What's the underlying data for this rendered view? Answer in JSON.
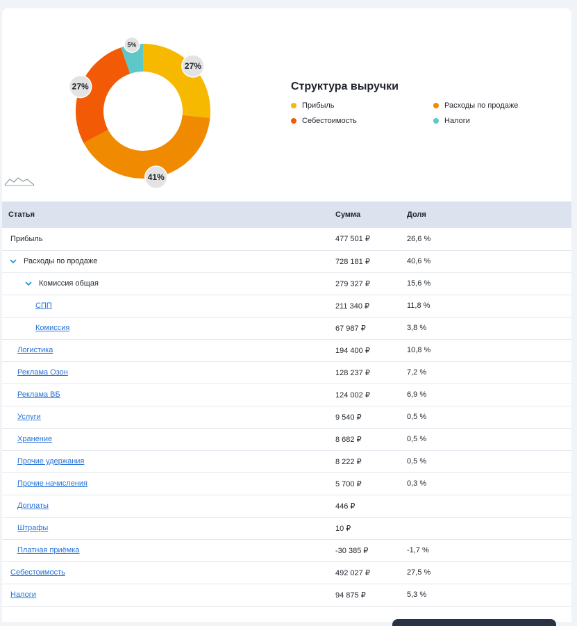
{
  "chart": {
    "title": "Структура выручки",
    "legend": [
      {
        "label": "Прибыль",
        "color": "#f7b800"
      },
      {
        "label": "Расходы по продаже",
        "color": "#f08a00"
      },
      {
        "label": "Себестоимость",
        "color": "#f25a05"
      },
      {
        "label": "Налоги",
        "color": "#5ec8c8"
      }
    ]
  },
  "chart_data": {
    "type": "pie",
    "categories": [
      "Прибыль",
      "Расходы по продаже",
      "Себестоимость",
      "Налоги"
    ],
    "values": [
      26.6,
      40.6,
      27.5,
      5.3
    ],
    "data_labels": [
      "27%",
      "41%",
      "27%",
      "5%"
    ],
    "colors": [
      "#f7b800",
      "#f08a00",
      "#f25a05",
      "#5ec8c8"
    ],
    "donut": true,
    "legend_position": "right"
  },
  "table": {
    "headers": {
      "name": "Статья",
      "sum": "Сумма",
      "share": "Доля"
    },
    "rows": [
      {
        "name": "Прибыль",
        "sum": "477 501 ₽",
        "share": "26,6 %",
        "level": 0,
        "link": false,
        "expand": false
      },
      {
        "name": "Расходы по продаже",
        "sum": "728 181 ₽",
        "share": "40,6 %",
        "level": 0,
        "link": false,
        "expand": true
      },
      {
        "name": "Комиссия общая",
        "sum": "279 327 ₽",
        "share": "15,6 %",
        "level": 1,
        "link": false,
        "expand": true
      },
      {
        "name": "СПП",
        "sum": "211 340 ₽",
        "share": "11,8 %",
        "level": 2,
        "link": true,
        "expand": false
      },
      {
        "name": "Комиссия",
        "sum": "67 987 ₽",
        "share": "3,8 %",
        "level": 2,
        "link": true,
        "expand": false
      },
      {
        "name": "Логистика",
        "sum": "194 400 ₽",
        "share": "10,8 %",
        "level": 1,
        "link": true,
        "expand": false
      },
      {
        "name": "Реклама Озон",
        "sum": "128 237 ₽",
        "share": "7,2 %",
        "level": 1,
        "link": true,
        "expand": false
      },
      {
        "name": "Реклама ВБ",
        "sum": "124 002 ₽",
        "share": "6,9 %",
        "level": 1,
        "link": true,
        "expand": false
      },
      {
        "name": "Услуги",
        "sum": "9 540 ₽",
        "share": "0,5 %",
        "level": 1,
        "link": true,
        "expand": false
      },
      {
        "name": "Хранение",
        "sum": "8 682 ₽",
        "share": "0,5 %",
        "level": 1,
        "link": true,
        "expand": false
      },
      {
        "name": "Прочие удержания",
        "sum": "8 222 ₽",
        "share": "0,5 %",
        "level": 1,
        "link": true,
        "expand": false
      },
      {
        "name": "Прочие начисления",
        "sum": "5 700 ₽",
        "share": "0,3 %",
        "level": 1,
        "link": true,
        "expand": false
      },
      {
        "name": "Доплаты",
        "sum": "446 ₽",
        "share": "",
        "level": 1,
        "link": true,
        "expand": false
      },
      {
        "name": "Штрафы",
        "sum": "10 ₽",
        "share": "",
        "level": 1,
        "link": true,
        "expand": false
      },
      {
        "name": "Платная приёмка",
        "sum": "-30 385 ₽",
        "share": "-1,7 %",
        "level": 1,
        "link": true,
        "expand": false
      },
      {
        "name": "Себестоимость",
        "sum": "492 027 ₽",
        "share": "27,5 %",
        "level": 0,
        "link": true,
        "expand": false
      },
      {
        "name": "Налоги",
        "sum": "94 875 ₽",
        "share": "5,3 %",
        "level": 0,
        "link": true,
        "expand": false
      }
    ]
  },
  "icons": {
    "chevron": "chevron-down-icon",
    "sparkline": "chart-sparkline-icon"
  },
  "accent_color": "#1b9ad6",
  "link_color": "#2672d6"
}
